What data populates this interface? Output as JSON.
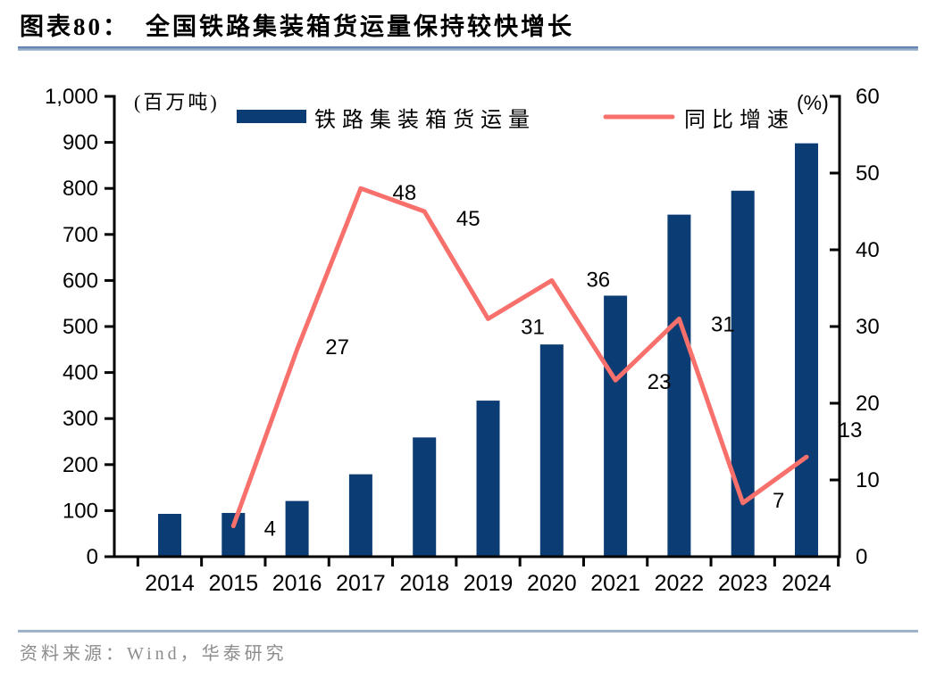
{
  "header": {
    "label": "图表80：",
    "title": "全国铁路集装箱货运量保持较快增长"
  },
  "legend": {
    "bar_label": "铁路集装箱货运量",
    "line_label": "同比增速"
  },
  "axes": {
    "left_unit": "(百万吨)",
    "right_unit": "(%)"
  },
  "footer": {
    "source": "资料来源：Wind，华泰研究"
  },
  "colors": {
    "bar": "#0c3c74",
    "line": "#f8706c",
    "axis": "#000000",
    "title_rule_top": "#4e73a4",
    "title_rule_bottom": "#b9c9dd",
    "footer_rule": "#9db3cb",
    "source_text": "#8c8c8c"
  },
  "chart_data": {
    "type": "bar",
    "title": "全国铁路集装箱货运量保持较快增长",
    "categories": [
      "2014",
      "2015",
      "2016",
      "2017",
      "2018",
      "2019",
      "2020",
      "2021",
      "2022",
      "2023",
      "2024"
    ],
    "series": [
      {
        "name": "铁路集装箱货运量",
        "type": "bar",
        "axis": "left",
        "color": "#0c3c74",
        "values": [
          93,
          95,
          121,
          179,
          259,
          339,
          461,
          567,
          743,
          795,
          898
        ]
      },
      {
        "name": "同比增速",
        "type": "line",
        "axis": "right",
        "color": "#f8706c",
        "values": [
          null,
          4,
          27,
          48,
          45,
          31,
          36,
          23,
          31,
          7,
          13
        ],
        "point_labels": [
          "",
          "4",
          "27",
          "48",
          "45",
          "31",
          "36",
          "23",
          "31",
          "7",
          "13"
        ]
      }
    ],
    "left_axis": {
      "unit": "(百万吨)",
      "min": 0,
      "max": 1000,
      "tick_step": 100,
      "tick_labels": [
        "0",
        "100",
        "200",
        "300",
        "400",
        "500",
        "600",
        "700",
        "800",
        "900",
        "1,000"
      ]
    },
    "right_axis": {
      "unit": "(%)",
      "min": 0,
      "max": 60,
      "tick_step": 10,
      "tick_labels": [
        "0",
        "10",
        "20",
        "30",
        "40",
        "50",
        "60"
      ]
    },
    "grid": false,
    "legend_position": "top"
  }
}
